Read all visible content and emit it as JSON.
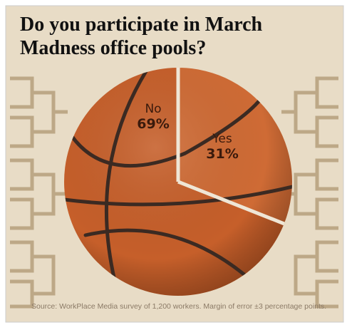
{
  "chart_data": {
    "type": "pie",
    "title": "Do you participate in March Madness office pools?",
    "categories": [
      "No",
      "Yes"
    ],
    "values": [
      69,
      31
    ],
    "value_labels": [
      "69%",
      "31%"
    ],
    "colors": [
      "#c65f2a",
      "#cf6b35"
    ],
    "source": "Source: WorkPlace Media survey of 1,200 workers. Margin of error ±3 percentage points."
  }
}
